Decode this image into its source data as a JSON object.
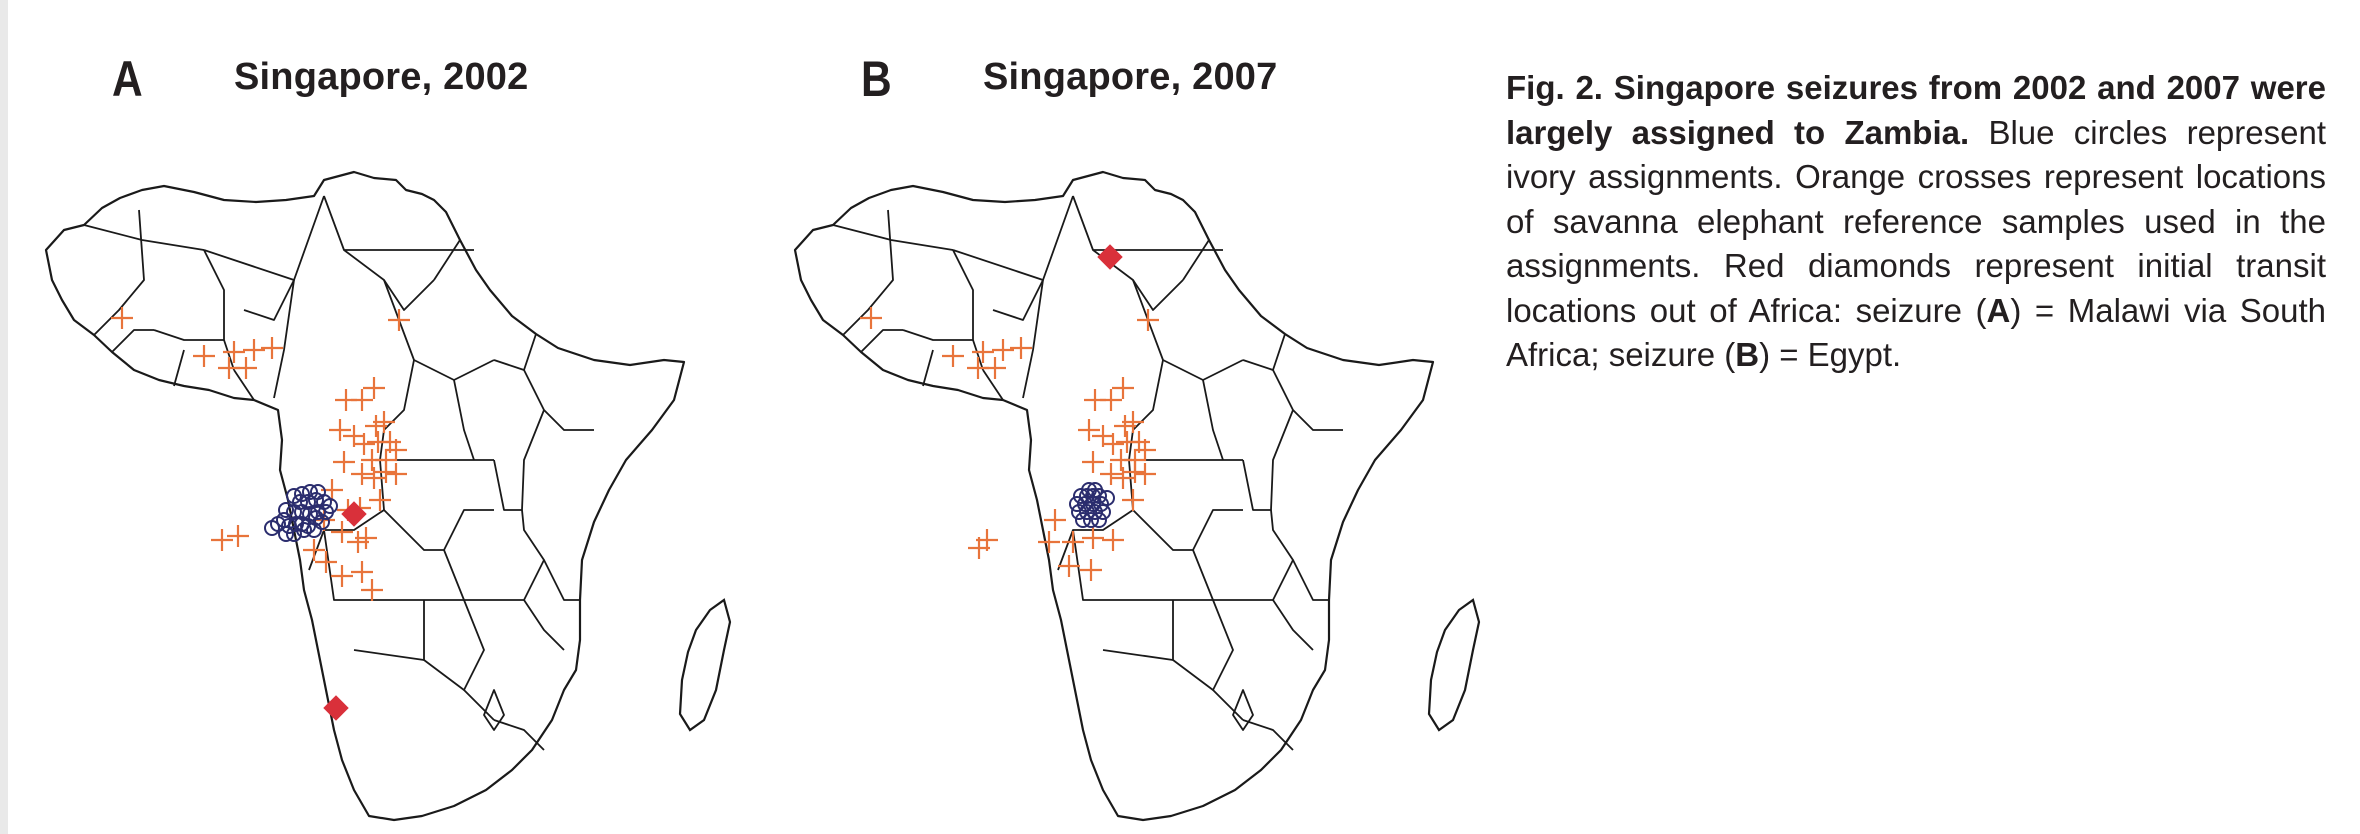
{
  "figure": {
    "panels": [
      {
        "letter": "A",
        "title": "Singapore, 2002",
        "markers": {
          "assignment_symbol": "blue-circle",
          "reference_symbol": "orange-cross",
          "transit_symbol": "red-diamond"
        }
      },
      {
        "letter": "B",
        "title": "Singapore, 2007",
        "markers": {
          "assignment_symbol": "blue-circle",
          "reference_symbol": "orange-cross",
          "transit_symbol": "red-diamond"
        }
      }
    ],
    "colors": {
      "assignment": "#2b2d6e",
      "reference": "#e8743b",
      "transit": "#d9303a",
      "border": "#1a1a1a"
    },
    "caption": {
      "figure_label": "Fig. 2.",
      "bold_title": "Singapore seizures from 2002 and 2007 were largely assigned to Zambia.",
      "body_1": "Blue circles represent ivory assignments. Orange crosses represent locations of sa­vanna elephant reference samples used in the assign­ments. Red diamonds represent initial transit locations out of Africa: seizure (",
      "ref_a": "A",
      "body_2": ") = Malawi via South Africa; seizure (",
      "ref_b": "B",
      "body_3": ") = Egypt."
    }
  }
}
